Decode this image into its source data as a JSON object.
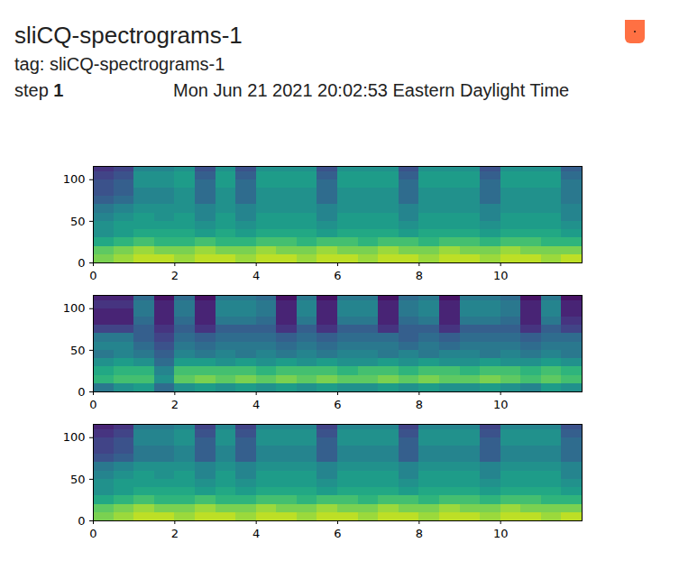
{
  "header": {
    "title": "sliCQ-spectrograms-1",
    "tag": "tag: sliCQ-spectrograms-1",
    "step_label": "step",
    "step": 1,
    "time": "Mon Jun 21 2021 20:02:53 Eastern Daylight Time"
  },
  "chart_data": [
    {
      "type": "heatmap",
      "color": "viridis",
      "zlim": [
        0,
        1
      ],
      "xlim": [
        0,
        12
      ],
      "xticks": [
        0,
        2,
        4,
        6,
        8,
        10
      ],
      "ylim": [
        0,
        116
      ],
      "yticks": [
        0,
        50,
        100
      ],
      "x_bins": [
        0,
        0.5,
        1,
        1.5,
        2,
        2.5,
        3,
        3.5,
        4,
        4.5,
        5,
        5.5,
        6,
        6.5,
        7,
        7.5,
        8,
        8.5,
        9,
        9.5,
        10,
        10.5,
        11,
        11.5,
        12
      ],
      "y_bins": [
        0,
        10,
        20,
        30,
        40,
        50,
        60,
        70,
        80,
        90,
        100,
        110,
        116
      ],
      "cells": [
        [
          0.8,
          0.85,
          0.9,
          0.9,
          0.85,
          0.9,
          0.9,
          0.85,
          0.9,
          0.9,
          0.85,
          0.9,
          0.9,
          0.85,
          0.9,
          0.9,
          0.85,
          0.9,
          0.9,
          0.85,
          0.9,
          0.9,
          0.85,
          0.9
        ],
        [
          0.75,
          0.8,
          0.85,
          0.8,
          0.8,
          0.85,
          0.8,
          0.8,
          0.85,
          0.8,
          0.8,
          0.85,
          0.8,
          0.8,
          0.85,
          0.8,
          0.8,
          0.85,
          0.8,
          0.8,
          0.85,
          0.8,
          0.8,
          0.8
        ],
        [
          0.6,
          0.65,
          0.7,
          0.65,
          0.65,
          0.7,
          0.65,
          0.65,
          0.7,
          0.7,
          0.65,
          0.7,
          0.7,
          0.65,
          0.7,
          0.7,
          0.65,
          0.7,
          0.7,
          0.65,
          0.7,
          0.7,
          0.65,
          0.65
        ],
        [
          0.5,
          0.55,
          0.6,
          0.6,
          0.6,
          0.55,
          0.6,
          0.55,
          0.6,
          0.6,
          0.6,
          0.55,
          0.6,
          0.6,
          0.6,
          0.55,
          0.6,
          0.6,
          0.6,
          0.55,
          0.6,
          0.6,
          0.6,
          0.55
        ],
        [
          0.5,
          0.55,
          0.55,
          0.55,
          0.55,
          0.5,
          0.55,
          0.5,
          0.55,
          0.55,
          0.55,
          0.5,
          0.55,
          0.55,
          0.55,
          0.5,
          0.55,
          0.55,
          0.55,
          0.5,
          0.55,
          0.55,
          0.55,
          0.5
        ],
        [
          0.45,
          0.5,
          0.55,
          0.5,
          0.55,
          0.45,
          0.55,
          0.45,
          0.55,
          0.55,
          0.55,
          0.45,
          0.55,
          0.55,
          0.55,
          0.45,
          0.55,
          0.55,
          0.55,
          0.45,
          0.55,
          0.55,
          0.55,
          0.45
        ],
        [
          0.4,
          0.45,
          0.5,
          0.5,
          0.5,
          0.45,
          0.5,
          0.45,
          0.5,
          0.5,
          0.5,
          0.45,
          0.5,
          0.5,
          0.5,
          0.45,
          0.5,
          0.5,
          0.5,
          0.45,
          0.5,
          0.5,
          0.5,
          0.45
        ],
        [
          0.3,
          0.35,
          0.45,
          0.45,
          0.5,
          0.35,
          0.5,
          0.35,
          0.5,
          0.5,
          0.5,
          0.35,
          0.5,
          0.5,
          0.5,
          0.35,
          0.5,
          0.5,
          0.5,
          0.35,
          0.5,
          0.5,
          0.5,
          0.4
        ],
        [
          0.25,
          0.3,
          0.45,
          0.45,
          0.5,
          0.35,
          0.5,
          0.35,
          0.5,
          0.5,
          0.5,
          0.35,
          0.5,
          0.5,
          0.5,
          0.35,
          0.5,
          0.5,
          0.5,
          0.35,
          0.5,
          0.5,
          0.5,
          0.4
        ],
        [
          0.25,
          0.3,
          0.5,
          0.5,
          0.55,
          0.35,
          0.55,
          0.35,
          0.55,
          0.55,
          0.55,
          0.35,
          0.55,
          0.55,
          0.55,
          0.35,
          0.55,
          0.55,
          0.55,
          0.35,
          0.55,
          0.55,
          0.55,
          0.4
        ],
        [
          0.2,
          0.25,
          0.5,
          0.5,
          0.55,
          0.3,
          0.55,
          0.3,
          0.55,
          0.55,
          0.55,
          0.3,
          0.55,
          0.55,
          0.55,
          0.3,
          0.55,
          0.55,
          0.55,
          0.3,
          0.55,
          0.55,
          0.55,
          0.35
        ],
        [
          0.15,
          0.2,
          0.45,
          0.45,
          0.5,
          0.25,
          0.5,
          0.25,
          0.5,
          0.5,
          0.5,
          0.25,
          0.5,
          0.5,
          0.5,
          0.25,
          0.5,
          0.5,
          0.5,
          0.25,
          0.5,
          0.5,
          0.5,
          0.3
        ]
      ]
    },
    {
      "type": "heatmap",
      "color": "viridis",
      "zlim": [
        0,
        1
      ],
      "xlim": [
        0,
        12
      ],
      "xticks": [
        0,
        2,
        4,
        6,
        8,
        10
      ],
      "ylim": [
        0,
        116
      ],
      "yticks": [
        0,
        50,
        100
      ],
      "x_bins": [
        0,
        0.5,
        1,
        1.5,
        2,
        2.5,
        3,
        3.5,
        4,
        4.5,
        5,
        5.5,
        6,
        6.5,
        7,
        7.5,
        8,
        8.5,
        9,
        9.5,
        10,
        10.5,
        11,
        11.5,
        12
      ],
      "y_bins": [
        0,
        10,
        20,
        30,
        40,
        50,
        60,
        70,
        80,
        90,
        100,
        110,
        116
      ],
      "cells": [
        [
          0.4,
          0.5,
          0.55,
          0.35,
          0.5,
          0.55,
          0.5,
          0.55,
          0.5,
          0.55,
          0.5,
          0.55,
          0.5,
          0.5,
          0.55,
          0.5,
          0.55,
          0.5,
          0.5,
          0.55,
          0.5,
          0.45,
          0.55,
          0.5
        ],
        [
          0.65,
          0.7,
          0.7,
          0.5,
          0.75,
          0.8,
          0.75,
          0.8,
          0.75,
          0.8,
          0.75,
          0.8,
          0.75,
          0.75,
          0.8,
          0.75,
          0.8,
          0.75,
          0.75,
          0.8,
          0.75,
          0.7,
          0.75,
          0.7
        ],
        [
          0.6,
          0.65,
          0.65,
          0.45,
          0.7,
          0.7,
          0.7,
          0.7,
          0.65,
          0.7,
          0.7,
          0.7,
          0.65,
          0.7,
          0.7,
          0.65,
          0.7,
          0.7,
          0.65,
          0.7,
          0.7,
          0.65,
          0.7,
          0.65
        ],
        [
          0.5,
          0.55,
          0.5,
          0.35,
          0.55,
          0.55,
          0.5,
          0.55,
          0.5,
          0.55,
          0.5,
          0.55,
          0.5,
          0.5,
          0.55,
          0.5,
          0.55,
          0.5,
          0.5,
          0.55,
          0.5,
          0.5,
          0.55,
          0.5
        ],
        [
          0.4,
          0.45,
          0.4,
          0.3,
          0.45,
          0.4,
          0.45,
          0.4,
          0.45,
          0.4,
          0.45,
          0.4,
          0.45,
          0.45,
          0.4,
          0.45,
          0.4,
          0.45,
          0.45,
          0.4,
          0.45,
          0.4,
          0.45,
          0.4
        ],
        [
          0.45,
          0.45,
          0.35,
          0.25,
          0.4,
          0.35,
          0.4,
          0.4,
          0.4,
          0.35,
          0.4,
          0.35,
          0.4,
          0.4,
          0.4,
          0.35,
          0.4,
          0.35,
          0.4,
          0.4,
          0.4,
          0.35,
          0.4,
          0.4
        ],
        [
          0.4,
          0.4,
          0.3,
          0.2,
          0.35,
          0.3,
          0.35,
          0.35,
          0.35,
          0.3,
          0.35,
          0.3,
          0.35,
          0.35,
          0.35,
          0.3,
          0.35,
          0.3,
          0.35,
          0.35,
          0.35,
          0.3,
          0.35,
          0.35
        ],
        [
          0.2,
          0.2,
          0.3,
          0.15,
          0.3,
          0.15,
          0.3,
          0.3,
          0.3,
          0.15,
          0.3,
          0.15,
          0.3,
          0.3,
          0.15,
          0.3,
          0.3,
          0.15,
          0.3,
          0.3,
          0.3,
          0.15,
          0.3,
          0.2
        ],
        [
          0.1,
          0.1,
          0.35,
          0.1,
          0.35,
          0.1,
          0.4,
          0.4,
          0.35,
          0.1,
          0.4,
          0.1,
          0.4,
          0.4,
          0.1,
          0.35,
          0.4,
          0.1,
          0.4,
          0.4,
          0.35,
          0.1,
          0.4,
          0.15
        ],
        [
          0.1,
          0.1,
          0.4,
          0.1,
          0.4,
          0.1,
          0.45,
          0.45,
          0.4,
          0.1,
          0.45,
          0.1,
          0.45,
          0.45,
          0.1,
          0.4,
          0.45,
          0.1,
          0.45,
          0.45,
          0.4,
          0.1,
          0.45,
          0.1
        ],
        [
          0.15,
          0.15,
          0.4,
          0.1,
          0.4,
          0.1,
          0.45,
          0.45,
          0.4,
          0.1,
          0.45,
          0.1,
          0.45,
          0.45,
          0.1,
          0.4,
          0.45,
          0.1,
          0.45,
          0.45,
          0.4,
          0.1,
          0.45,
          0.1
        ],
        [
          0.1,
          0.1,
          0.35,
          0.05,
          0.35,
          0.05,
          0.4,
          0.4,
          0.35,
          0.05,
          0.4,
          0.05,
          0.4,
          0.4,
          0.05,
          0.35,
          0.4,
          0.05,
          0.4,
          0.4,
          0.35,
          0.05,
          0.4,
          0.05
        ]
      ]
    },
    {
      "type": "heatmap",
      "color": "viridis",
      "zlim": [
        0,
        1
      ],
      "xlim": [
        0,
        12
      ],
      "xticks": [
        0,
        2,
        4,
        6,
        8,
        10
      ],
      "ylim": [
        0,
        116
      ],
      "yticks": [
        0,
        50,
        100
      ],
      "x_bins": [
        0,
        0.5,
        1,
        1.5,
        2,
        2.5,
        3,
        3.5,
        4,
        4.5,
        5,
        5.5,
        6,
        6.5,
        7,
        7.5,
        8,
        8.5,
        9,
        9.5,
        10,
        10.5,
        11,
        11.5,
        12
      ],
      "y_bins": [
        0,
        10,
        20,
        30,
        40,
        50,
        60,
        70,
        80,
        90,
        100,
        110,
        116
      ],
      "cells": [
        [
          0.8,
          0.85,
          0.9,
          0.9,
          0.85,
          0.9,
          0.9,
          0.85,
          0.9,
          0.9,
          0.85,
          0.9,
          0.9,
          0.85,
          0.9,
          0.9,
          0.85,
          0.9,
          0.9,
          0.85,
          0.9,
          0.9,
          0.85,
          0.9
        ],
        [
          0.75,
          0.8,
          0.85,
          0.8,
          0.8,
          0.85,
          0.8,
          0.8,
          0.85,
          0.8,
          0.8,
          0.85,
          0.8,
          0.8,
          0.85,
          0.8,
          0.8,
          0.85,
          0.8,
          0.8,
          0.85,
          0.8,
          0.8,
          0.8
        ],
        [
          0.6,
          0.65,
          0.7,
          0.65,
          0.65,
          0.7,
          0.65,
          0.65,
          0.7,
          0.7,
          0.65,
          0.7,
          0.7,
          0.65,
          0.7,
          0.7,
          0.65,
          0.7,
          0.7,
          0.65,
          0.7,
          0.7,
          0.65,
          0.65
        ],
        [
          0.5,
          0.55,
          0.6,
          0.6,
          0.6,
          0.55,
          0.6,
          0.55,
          0.6,
          0.6,
          0.6,
          0.55,
          0.6,
          0.6,
          0.6,
          0.55,
          0.6,
          0.6,
          0.6,
          0.55,
          0.6,
          0.6,
          0.6,
          0.55
        ],
        [
          0.5,
          0.55,
          0.55,
          0.55,
          0.55,
          0.5,
          0.55,
          0.5,
          0.55,
          0.55,
          0.55,
          0.5,
          0.55,
          0.55,
          0.55,
          0.5,
          0.55,
          0.55,
          0.55,
          0.5,
          0.55,
          0.55,
          0.55,
          0.5
        ],
        [
          0.45,
          0.5,
          0.55,
          0.5,
          0.55,
          0.45,
          0.55,
          0.45,
          0.55,
          0.55,
          0.55,
          0.45,
          0.55,
          0.55,
          0.55,
          0.45,
          0.55,
          0.55,
          0.55,
          0.45,
          0.55,
          0.55,
          0.55,
          0.45
        ],
        [
          0.4,
          0.45,
          0.5,
          0.5,
          0.5,
          0.45,
          0.5,
          0.45,
          0.5,
          0.5,
          0.5,
          0.45,
          0.5,
          0.5,
          0.5,
          0.45,
          0.5,
          0.5,
          0.5,
          0.45,
          0.5,
          0.5,
          0.5,
          0.45
        ],
        [
          0.25,
          0.3,
          0.4,
          0.4,
          0.45,
          0.3,
          0.45,
          0.3,
          0.45,
          0.45,
          0.45,
          0.3,
          0.45,
          0.45,
          0.45,
          0.3,
          0.45,
          0.45,
          0.45,
          0.3,
          0.45,
          0.45,
          0.45,
          0.35
        ],
        [
          0.2,
          0.25,
          0.4,
          0.4,
          0.45,
          0.3,
          0.45,
          0.3,
          0.45,
          0.45,
          0.45,
          0.3,
          0.45,
          0.45,
          0.45,
          0.3,
          0.45,
          0.45,
          0.45,
          0.3,
          0.45,
          0.45,
          0.45,
          0.35
        ],
        [
          0.2,
          0.25,
          0.45,
          0.45,
          0.5,
          0.3,
          0.5,
          0.3,
          0.5,
          0.5,
          0.5,
          0.3,
          0.5,
          0.5,
          0.5,
          0.3,
          0.5,
          0.5,
          0.5,
          0.3,
          0.5,
          0.5,
          0.5,
          0.35
        ],
        [
          0.15,
          0.2,
          0.45,
          0.45,
          0.5,
          0.25,
          0.5,
          0.25,
          0.5,
          0.5,
          0.5,
          0.25,
          0.5,
          0.5,
          0.5,
          0.25,
          0.5,
          0.5,
          0.5,
          0.25,
          0.5,
          0.5,
          0.5,
          0.3
        ],
        [
          0.1,
          0.15,
          0.4,
          0.4,
          0.45,
          0.2,
          0.45,
          0.2,
          0.45,
          0.45,
          0.45,
          0.2,
          0.45,
          0.45,
          0.45,
          0.2,
          0.45,
          0.45,
          0.45,
          0.2,
          0.45,
          0.45,
          0.45,
          0.25
        ]
      ]
    }
  ]
}
